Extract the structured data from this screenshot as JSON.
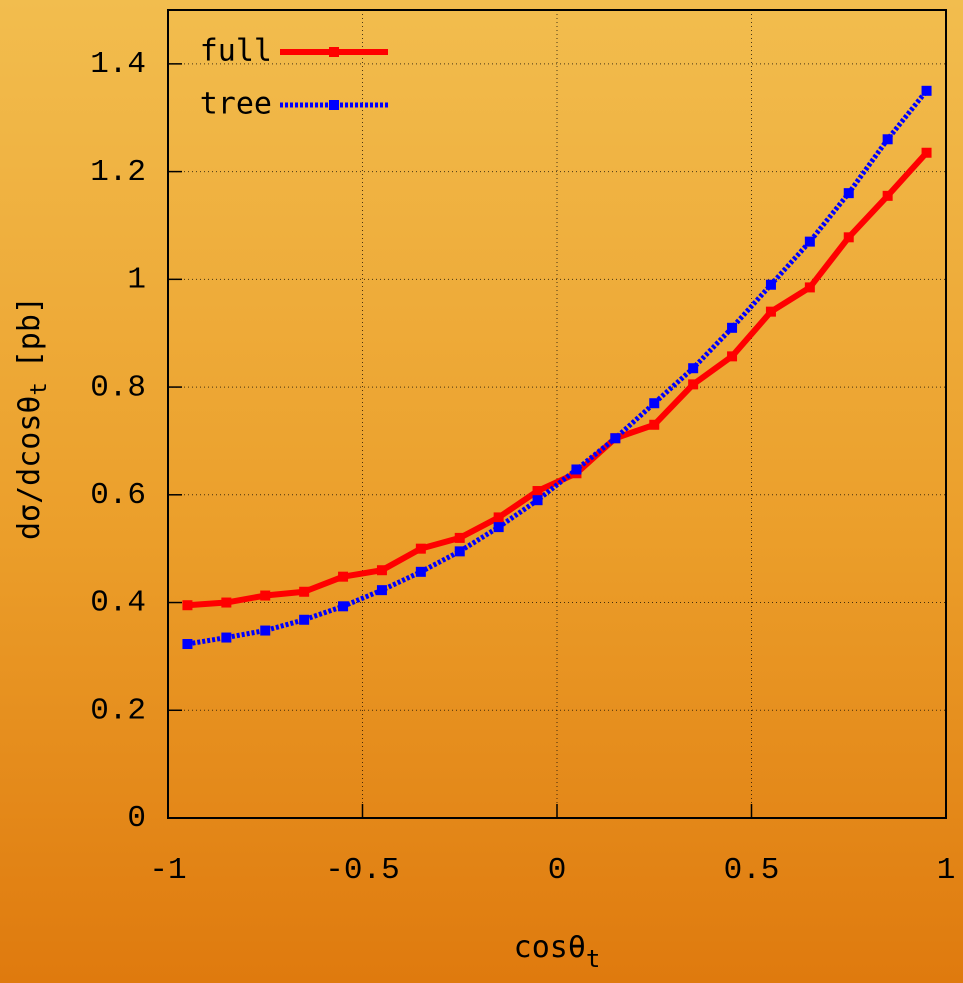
{
  "chart_data": {
    "type": "line",
    "xlabel": "cosθ",
    "xlabel_sub": "t",
    "ylabel": "dσ/dcosθ",
    "ylabel_sub": "t",
    "ylabel_unit": "[pb]",
    "x": [
      -0.95,
      -0.85,
      -0.75,
      -0.65,
      -0.55,
      -0.45,
      -0.35,
      -0.25,
      -0.15,
      -0.05,
      0.05,
      0.15,
      0.25,
      0.35,
      0.45,
      0.55,
      0.65,
      0.75,
      0.85,
      0.95
    ],
    "series": [
      {
        "name": "full",
        "color": "#ff0000",
        "dash": false,
        "values": [
          0.395,
          0.4,
          0.413,
          0.42,
          0.448,
          0.46,
          0.5,
          0.52,
          0.558,
          0.607,
          0.64,
          0.705,
          0.73,
          0.805,
          0.857,
          0.94,
          0.985,
          1.078,
          1.155,
          1.235
        ]
      },
      {
        "name": "tree",
        "color": "#0000ff",
        "dash": true,
        "values": [
          0.323,
          0.335,
          0.348,
          0.368,
          0.393,
          0.423,
          0.457,
          0.495,
          0.54,
          0.59,
          0.647,
          0.705,
          0.77,
          0.835,
          0.91,
          0.99,
          1.07,
          1.16,
          1.26,
          1.35
        ]
      }
    ],
    "xlim": [
      -1,
      1
    ],
    "xticks": [
      -1,
      -0.5,
      0,
      0.5,
      1
    ],
    "ylim": [
      0,
      1.5
    ],
    "yticks": [
      0,
      0.2,
      0.4,
      0.6,
      0.8,
      1,
      1.2,
      1.4
    ],
    "grid": true,
    "legend": "top-left"
  }
}
